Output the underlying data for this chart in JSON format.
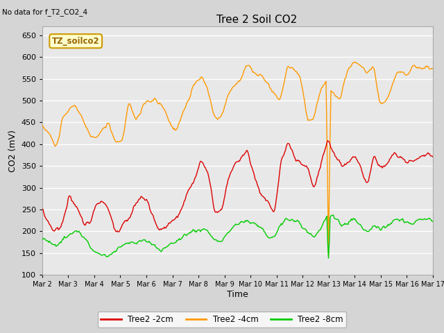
{
  "title": "Tree 2 Soil CO2",
  "no_data_text": "No data for f_T2_CO2_4",
  "ylabel": "CO2 (mV)",
  "xlabel": "Time",
  "watermark": "TZ_soilco2",
  "ylim": [
    100,
    670
  ],
  "yticks": [
    100,
    150,
    200,
    250,
    300,
    350,
    400,
    450,
    500,
    550,
    600,
    650
  ],
  "bg_color": "#d5d5d5",
  "plot_bg_color": "#e8e8e8",
  "legend_labels": [
    "Tree2 -2cm",
    "Tree2 -4cm",
    "Tree2 -8cm"
  ],
  "legend_colors": [
    "#dd0000",
    "#ff9900",
    "#00cc00"
  ],
  "line_colors": {
    "2cm": "#dd0000",
    "4cm": "#ff9900",
    "8cm": "#00cc00"
  },
  "x_tick_labels": [
    "Mar 2",
    "Mar 3",
    "Mar 4",
    "Mar 5",
    "Mar 6",
    "Mar 7",
    "Mar 8",
    "Mar 9",
    "Mar 10",
    "Mar 11",
    "Mar 12",
    "Mar 13",
    "Mar 14",
    "Mar 15",
    "Mar 16",
    "Mar 17"
  ],
  "num_points": 480,
  "seed": 42
}
